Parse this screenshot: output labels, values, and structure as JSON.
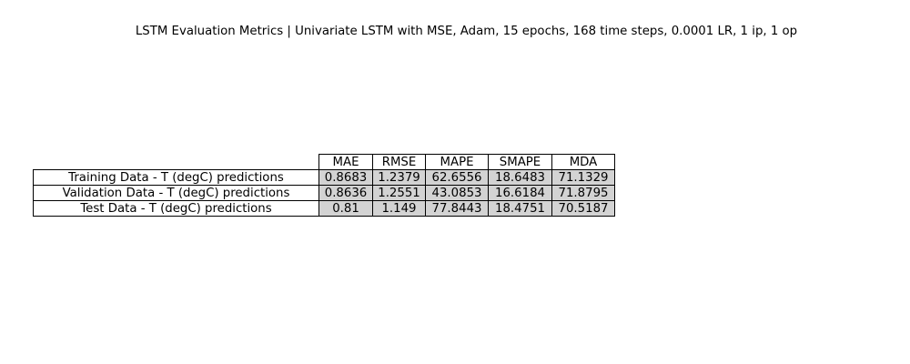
{
  "chart_data": {
    "type": "table",
    "title": "LSTM Evaluation Metrics | Univariate LSTM with MSE, Adam, 15 epochs, 168 time steps, 0.0001 LR, 1 ip, 1 op",
    "columns": [
      "MAE",
      "RMSE",
      "MAPE",
      "SMAPE",
      "MDA"
    ],
    "rows": [
      {
        "label": "Training Data - T (degC) predictions",
        "values": [
          "0.8683",
          "1.2379",
          "62.6556",
          "18.6483",
          "71.1329"
        ]
      },
      {
        "label": "Validation Data - T (degC) predictions",
        "values": [
          "0.8636",
          "1.2551",
          "43.0853",
          "16.6184",
          "71.8795"
        ]
      },
      {
        "label": "Test Data - T (degC) predictions",
        "values": [
          "0.81",
          "1.149",
          "77.8443",
          "18.4751",
          "70.5187"
        ]
      }
    ],
    "colors": {
      "cell_fill": "#d3d3d3",
      "header_fill": "#ffffff",
      "border": "#000000"
    }
  }
}
